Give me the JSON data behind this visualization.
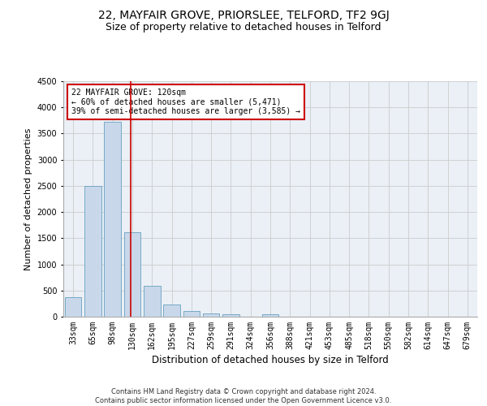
{
  "title1": "22, MAYFAIR GROVE, PRIORSLEE, TELFORD, TF2 9GJ",
  "title2": "Size of property relative to detached houses in Telford",
  "xlabel": "Distribution of detached houses by size in Telford",
  "ylabel": "Number of detached properties",
  "categories": [
    "33sqm",
    "65sqm",
    "98sqm",
    "130sqm",
    "162sqm",
    "195sqm",
    "227sqm",
    "259sqm",
    "291sqm",
    "324sqm",
    "356sqm",
    "388sqm",
    "421sqm",
    "453sqm",
    "485sqm",
    "518sqm",
    "550sqm",
    "582sqm",
    "614sqm",
    "647sqm",
    "679sqm"
  ],
  "values": [
    370,
    2500,
    3720,
    1620,
    590,
    230,
    110,
    60,
    40,
    0,
    45,
    0,
    0,
    0,
    0,
    0,
    0,
    0,
    0,
    0,
    0
  ],
  "bar_color": "#c8d8ea",
  "bar_edge_color": "#6a9fc0",
  "vline_color": "#cc0000",
  "vline_pos": 2.925,
  "annotation_text": "22 MAYFAIR GROVE: 120sqm\n← 60% of detached houses are smaller (5,471)\n39% of semi-detached houses are larger (3,585) →",
  "annotation_box_color": "#ffffff",
  "annotation_box_edge": "#cc0000",
  "ylim": [
    0,
    4500
  ],
  "yticks": [
    0,
    500,
    1000,
    1500,
    2000,
    2500,
    3000,
    3500,
    4000,
    4500
  ],
  "grid_color": "#cccccc",
  "bg_color": "#eaf0f6",
  "footer": "Contains HM Land Registry data © Crown copyright and database right 2024.\nContains public sector information licensed under the Open Government Licence v3.0.",
  "title1_fontsize": 10,
  "title2_fontsize": 9,
  "xlabel_fontsize": 8.5,
  "ylabel_fontsize": 8,
  "tick_fontsize": 7,
  "footer_fontsize": 6
}
